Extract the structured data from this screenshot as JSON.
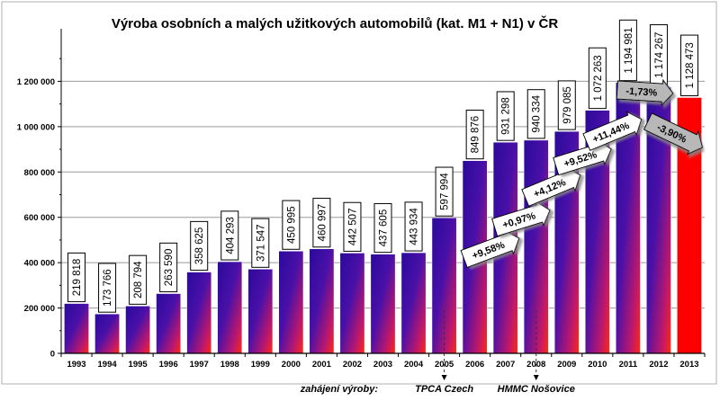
{
  "chart_data": {
    "type": "bar",
    "title": "Výroba osobních a malých užitkových automobilů  (kat. M1 + N1) v ČR",
    "categories": [
      "1993",
      "1994",
      "1995",
      "1996",
      "1997",
      "1998",
      "1999",
      "2000",
      "2001",
      "2002",
      "2003",
      "2004",
      "2005",
      "2006",
      "2007",
      "2008",
      "2009",
      "2010",
      "2011",
      "2012",
      "2013"
    ],
    "values": [
      219818,
      173766,
      208794,
      263590,
      358625,
      404293,
      371547,
      450995,
      460997,
      442507,
      437605,
      443934,
      597994,
      849876,
      931298,
      940334,
      979085,
      1072263,
      1194981,
      1174267,
      1128473
    ],
    "value_labels": [
      "219 818",
      "173 766",
      "208 794",
      "263 590",
      "358 625",
      "404 293",
      "371 547",
      "450 995",
      "460 997",
      "442 507",
      "437 605",
      "443 934",
      "597 994",
      "849 876",
      "931 298",
      "940 334",
      "979 085",
      "1 072 263",
      "1 194 981",
      "1 174 267",
      "1 128 473"
    ],
    "ylim": [
      0,
      1400000
    ],
    "yticks": [
      0,
      200000,
      400000,
      600000,
      800000,
      1000000,
      1200000
    ],
    "ytick_labels": [
      "0",
      "200 000",
      "400 000",
      "600 000",
      "800 000",
      "1 000 000",
      "1 200 000"
    ],
    "grid": true,
    "highlight_last_bar_color": "#ff0000",
    "bar_gradient": [
      "#3a0ea0",
      "#ff1a1a"
    ],
    "change_arrows": [
      {
        "label": "+9,58%",
        "from": "2006",
        "style": "white"
      },
      {
        "label": "+0,97%",
        "from": "2007",
        "style": "white"
      },
      {
        "label": "+4,12%",
        "from": "2008",
        "style": "white"
      },
      {
        "label": "+9,52%",
        "from": "2009",
        "style": "white"
      },
      {
        "label": "+11,44%",
        "from": "2010",
        "style": "white"
      },
      {
        "label": "-1,73%",
        "from": "2011",
        "style": "gray"
      },
      {
        "label": "-3,90%",
        "from": "2012",
        "style": "gray"
      }
    ],
    "annotations": [
      {
        "label": "zahájení výroby:",
        "at": null
      },
      {
        "label": "TPCA Czech",
        "at": "2005"
      },
      {
        "label": "HMMC Nošovice",
        "at": "2008"
      }
    ]
  }
}
